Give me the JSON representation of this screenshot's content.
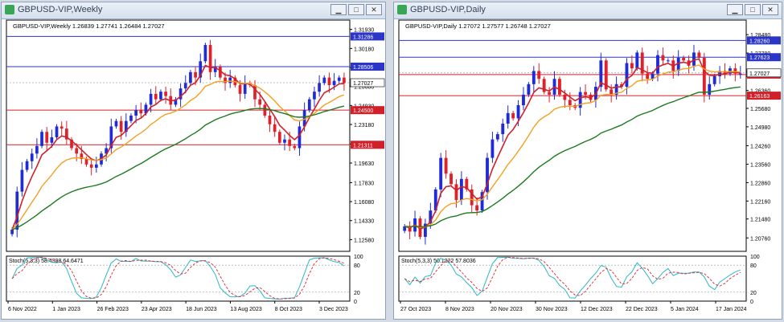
{
  "windows": [
    {
      "id": "weekly",
      "title": "GBPUSD-VIP,Weekly",
      "header": "GBPUSD-VIP,Weekly  1.26839 1.27741 1.26484 1.27027",
      "price_axis": [
        "1.31930",
        "1.30180",
        "1.28430",
        "1.26680",
        "1.24930",
        "1.23180",
        "1.21380",
        "1.19630",
        "1.17830",
        "1.16080",
        "1.14330",
        "1.12580"
      ],
      "price_range": [
        1.115,
        1.3235
      ],
      "hlines": [
        {
          "price": 1.31286,
          "label": "1.31286",
          "color": "#2b35c8"
        },
        {
          "price": 1.28506,
          "label": "1.28506",
          "color": "#2b35c8"
        },
        {
          "price": 1.245,
          "label": "1.24500",
          "color": "#d0202a"
        },
        {
          "price": 1.21311,
          "label": "1.21311",
          "color": "#d0202a"
        }
      ],
      "current": {
        "price": 1.27027,
        "label": "1.27027"
      },
      "stoch_label": "Stoch(5,3,3) 58.4398 64.6471",
      "stoch_levels": [
        "100",
        "80",
        "20",
        "0"
      ],
      "time_labels": [
        "6 Nov 2022",
        "1 Jan 2023",
        "26 Feb 2023",
        "23 Apr 2023",
        "18 Jun 2023",
        "13 Aug 2023",
        "8 Oct 2023",
        "3 Dec 2023"
      ],
      "closes": [
        1.135,
        1.17,
        1.19,
        1.198,
        1.205,
        1.212,
        1.225,
        1.215,
        1.22,
        1.23,
        1.228,
        1.218,
        1.21,
        1.205,
        1.2,
        1.195,
        1.192,
        1.195,
        1.205,
        1.21,
        1.23,
        1.235,
        1.225,
        1.235,
        1.24,
        1.245,
        1.242,
        1.25,
        1.26,
        1.255,
        1.262,
        1.258,
        1.25,
        1.255,
        1.265,
        1.27,
        1.28,
        1.275,
        1.29,
        1.305,
        1.28,
        1.285,
        1.275,
        1.27,
        1.275,
        1.268,
        1.26,
        1.27,
        1.268,
        1.255,
        1.25,
        1.24,
        1.232,
        1.225,
        1.215,
        1.218,
        1.212,
        1.21,
        1.23,
        1.245,
        1.255,
        1.262,
        1.27,
        1.275,
        1.268,
        1.272,
        1.275,
        1.27
      ]
    },
    {
      "id": "daily",
      "title": "GBPUSD-VIP,Daily",
      "header": "GBPUSD-VIP,Daily  1.27072 1.27577 1.26748 1.27027",
      "price_axis": [
        "1.28480",
        "1.27780",
        "1.27060",
        "1.26360",
        "1.25680",
        "1.24980",
        "1.24260",
        "1.23560",
        "1.22860",
        "1.22160",
        "1.21480",
        "1.20760"
      ],
      "price_range": [
        1.2025,
        1.2885
      ],
      "hlines": [
        {
          "price": 1.2826,
          "label": "1.28260",
          "color": "#2b35c8"
        },
        {
          "price": 1.27623,
          "label": "1.27623",
          "color": "#2b35c8"
        },
        {
          "price": 1.26963,
          "label": "1.26963",
          "color": "#d0202a"
        },
        {
          "price": 1.26163,
          "label": "1.26163",
          "color": "#d0202a"
        }
      ],
      "current": {
        "price": 1.27027,
        "label": "1.27027"
      },
      "stoch_label": "Stoch(5,3,3) 50.1322 57.8036",
      "stoch_levels": [
        "100",
        "80",
        "20",
        "0"
      ],
      "time_labels": [
        "27 Oct 2023",
        "8 Nov 2023",
        "20 Nov 2023",
        "30 Nov 2023",
        "12 Dec 2023",
        "22 Dec 2023",
        "5 Jan 2024",
        "17 Jan 2024"
      ],
      "closes": [
        1.212,
        1.21,
        1.215,
        1.208,
        1.213,
        1.218,
        1.226,
        1.238,
        1.232,
        1.228,
        1.222,
        1.23,
        1.226,
        1.22,
        1.218,
        1.225,
        1.238,
        1.245,
        1.247,
        1.251,
        1.255,
        1.253,
        1.258,
        1.262,
        1.266,
        1.271,
        1.268,
        1.263,
        1.262,
        1.268,
        1.262,
        1.26,
        1.258,
        1.257,
        1.263,
        1.262,
        1.26,
        1.265,
        1.275,
        1.264,
        1.262,
        1.266,
        1.265,
        1.274,
        1.272,
        1.278,
        1.27,
        1.268,
        1.27,
        1.277,
        1.275,
        1.275,
        1.271,
        1.276,
        1.275,
        1.273,
        1.278,
        1.276,
        1.262,
        1.266,
        1.269,
        1.271,
        1.27,
        1.272,
        1.27,
        1.27
      ]
    }
  ]
}
